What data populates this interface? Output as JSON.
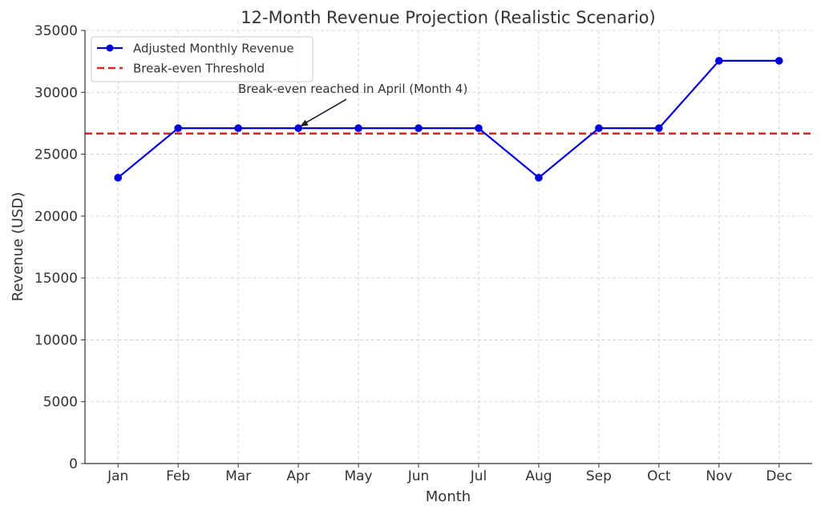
{
  "chart_data": {
    "type": "line",
    "title": "12-Month Revenue Projection (Realistic Scenario)",
    "xlabel": "Month",
    "ylabel": "Revenue (USD)",
    "categories": [
      "Jan",
      "Feb",
      "Mar",
      "Apr",
      "May",
      "Jun",
      "Jul",
      "Aug",
      "Sep",
      "Oct",
      "Nov",
      "Dec"
    ],
    "ylim": [
      0,
      35000
    ],
    "yticks": [
      0,
      5000,
      10000,
      15000,
      20000,
      25000,
      30000,
      35000
    ],
    "grid": true,
    "legend_position": "top-left",
    "series": [
      {
        "name": "Adjusted Monthly Revenue",
        "color": "#0000dd",
        "style": "solid-with-markers",
        "values": [
          23100,
          27100,
          27100,
          27100,
          27100,
          27100,
          27100,
          23100,
          27100,
          27100,
          32550,
          32550
        ]
      }
    ],
    "reference_lines": [
      {
        "name": "Break-even Threshold",
        "color": "#dd2222",
        "style": "dashed",
        "value": 26667
      }
    ],
    "annotation": {
      "text": "Break-even reached in April (Month 4)",
      "target_category": "Apr",
      "target_value": 27100
    }
  }
}
